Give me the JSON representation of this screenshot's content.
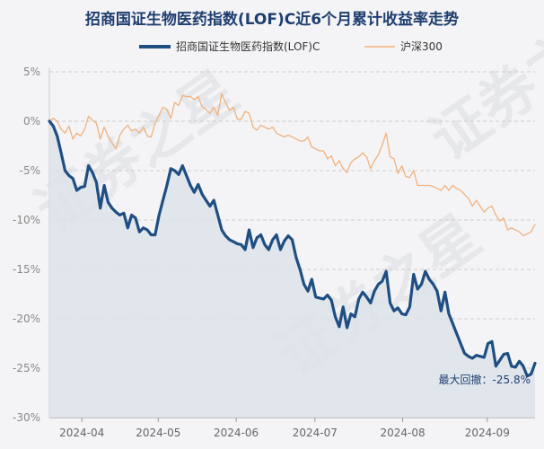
{
  "chart_data": {
    "type": "line",
    "title": "招商国证生物医药指数(LOF)C近6个月累计收益率走势",
    "y_unit": "%",
    "ylim": [
      -30,
      5
    ],
    "yticks": [
      "5%",
      "0%",
      "-5%",
      "-10%",
      "-15%",
      "-20%",
      "-25%",
      "-30%"
    ],
    "ytick_values": [
      5,
      0,
      -5,
      -10,
      -15,
      -20,
      -25,
      -30
    ],
    "xticks": [
      "2024-04",
      "2024-05",
      "2024-06",
      "2024-07",
      "2024-08",
      "2024-09"
    ],
    "xtick_values": [
      8.3,
      27.8,
      47.7,
      67.8,
      90.2,
      111.8
    ],
    "x_range": [
      0,
      124
    ],
    "grid": "horizontal dashed",
    "legend_position": "top",
    "colors": {
      "fund": "#1f4e82",
      "index": "#f0b27e",
      "area": "#dde3ea"
    },
    "series": [
      {
        "name": "招商国证生物医药指数(LOF)C",
        "points": [
          [
            0,
            0
          ],
          [
            1,
            -0.5
          ],
          [
            2,
            -1.5
          ],
          [
            3,
            -3.2
          ],
          [
            4,
            -5
          ],
          [
            5,
            -5.5
          ],
          [
            6,
            -5.8
          ],
          [
            7,
            -7
          ],
          [
            8,
            -6.7
          ],
          [
            9,
            -6.6
          ],
          [
            10,
            -4.5
          ],
          [
            11,
            -5.2
          ],
          [
            12,
            -6.2
          ],
          [
            13,
            -8.8
          ],
          [
            14,
            -6.5
          ],
          [
            15,
            -8.2
          ],
          [
            16,
            -8.8
          ],
          [
            17,
            -9.2
          ],
          [
            18,
            -9.5
          ],
          [
            19,
            -9.3
          ],
          [
            20,
            -10.8
          ],
          [
            21,
            -9.5
          ],
          [
            22,
            -9.8
          ],
          [
            23,
            -11.2
          ],
          [
            24,
            -10.8
          ],
          [
            25,
            -11
          ],
          [
            26,
            -11.5
          ],
          [
            27,
            -11.5
          ],
          [
            28,
            -9.5
          ],
          [
            29,
            -8
          ],
          [
            30,
            -6.5
          ],
          [
            31,
            -4.8
          ],
          [
            32,
            -5
          ],
          [
            33,
            -5.4
          ],
          [
            34,
            -4.5
          ],
          [
            35,
            -5.5
          ],
          [
            36,
            -6.5
          ],
          [
            37,
            -7.2
          ],
          [
            38,
            -6.4
          ],
          [
            39,
            -7.4
          ],
          [
            40,
            -8
          ],
          [
            41,
            -8.6
          ],
          [
            42,
            -8
          ],
          [
            43,
            -9.5
          ],
          [
            44,
            -11
          ],
          [
            45,
            -11.6
          ],
          [
            46,
            -12
          ],
          [
            47,
            -12.2
          ],
          [
            48,
            -12.4
          ],
          [
            49,
            -12.5
          ],
          [
            50,
            -13
          ],
          [
            51,
            -11
          ],
          [
            52,
            -12.8
          ],
          [
            53,
            -11.8
          ],
          [
            54,
            -11.5
          ],
          [
            55,
            -12.5
          ],
          [
            56,
            -13
          ],
          [
            57,
            -12
          ],
          [
            58,
            -11.5
          ],
          [
            59,
            -13
          ],
          [
            60,
            -12.1
          ],
          [
            61,
            -11.6
          ],
          [
            62,
            -12
          ],
          [
            63,
            -13.8
          ],
          [
            64,
            -15
          ],
          [
            65,
            -16.5
          ],
          [
            66,
            -17.2
          ],
          [
            67,
            -16
          ],
          [
            68,
            -17.8
          ],
          [
            69,
            -17.9
          ],
          [
            70,
            -18
          ],
          [
            71,
            -17.6
          ],
          [
            72,
            -18.1
          ],
          [
            73,
            -19.8
          ],
          [
            74,
            -20.8
          ],
          [
            75,
            -18.8
          ],
          [
            76,
            -20.9
          ],
          [
            77,
            -19.5
          ],
          [
            78,
            -19.8
          ],
          [
            79,
            -18
          ],
          [
            80,
            -17.3
          ],
          [
            81,
            -17.8
          ],
          [
            82,
            -18.4
          ],
          [
            83,
            -17.2
          ],
          [
            84,
            -16.5
          ],
          [
            85,
            -16.2
          ],
          [
            86,
            -15.2
          ],
          [
            87,
            -18.4
          ],
          [
            88,
            -19.2
          ],
          [
            89,
            -18.9
          ],
          [
            90,
            -19.5
          ],
          [
            91,
            -19.6
          ],
          [
            92,
            -18.8
          ],
          [
            93,
            -15.5
          ],
          [
            94,
            -17
          ],
          [
            95,
            -16.5
          ],
          [
            96,
            -15.2
          ],
          [
            97,
            -16
          ],
          [
            98,
            -16.5
          ],
          [
            99,
            -17.2
          ],
          [
            100,
            -19.2
          ],
          [
            101,
            -17.3
          ],
          [
            102,
            -19.5
          ],
          [
            103,
            -20.5
          ],
          [
            104,
            -21.5
          ],
          [
            105,
            -22.5
          ],
          [
            106,
            -23.5
          ],
          [
            107,
            -23.8
          ],
          [
            108,
            -24
          ],
          [
            109,
            -23.7
          ],
          [
            110,
            -23.8
          ],
          [
            111,
            -23.9
          ],
          [
            112,
            -22.5
          ],
          [
            113,
            -22.3
          ],
          [
            114,
            -24.8
          ],
          [
            115,
            -24.2
          ],
          [
            116,
            -23.6
          ],
          [
            117,
            -23.5
          ],
          [
            118,
            -24.8
          ],
          [
            119,
            -24.9
          ],
          [
            120,
            -24.3
          ],
          [
            121,
            -24.8
          ],
          [
            122,
            -25.8
          ],
          [
            123,
            -25.6
          ],
          [
            124,
            -24.5
          ]
        ]
      },
      {
        "name": "沪深300",
        "points": [
          [
            0,
            0
          ],
          [
            1,
            0.3
          ],
          [
            2,
            0
          ],
          [
            3,
            -0.8
          ],
          [
            4,
            -1.2
          ],
          [
            5,
            -0.5
          ],
          [
            6,
            -1.8
          ],
          [
            7,
            -1.2
          ],
          [
            8,
            -1.5
          ],
          [
            9,
            -0.8
          ],
          [
            10,
            0.5
          ],
          [
            11,
            0.1
          ],
          [
            12,
            -0.2
          ],
          [
            13,
            -1.8
          ],
          [
            14,
            -0.6
          ],
          [
            15,
            -1.5
          ],
          [
            16,
            -2.2
          ],
          [
            17,
            -2.8
          ],
          [
            18,
            -1.4
          ],
          [
            19,
            -0.8
          ],
          [
            20,
            -0.4
          ],
          [
            21,
            -1
          ],
          [
            22,
            -0.8
          ],
          [
            23,
            -1.2
          ],
          [
            24,
            -0.6
          ],
          [
            25,
            -1.5
          ],
          [
            26,
            -1.6
          ],
          [
            27,
            -0.2
          ],
          [
            28,
            0.6
          ],
          [
            29,
            1.4
          ],
          [
            30,
            1.2
          ],
          [
            31,
            0.3
          ],
          [
            32,
            1.9
          ],
          [
            33,
            1.6
          ],
          [
            34,
            2.6
          ],
          [
            35,
            2.5
          ],
          [
            36,
            2.5
          ],
          [
            37,
            2.2
          ],
          [
            38,
            2.5
          ],
          [
            39,
            1.5
          ],
          [
            40,
            1.2
          ],
          [
            41,
            0.8
          ],
          [
            42,
            1.4
          ],
          [
            43,
            0.6
          ],
          [
            44,
            2.8
          ],
          [
            45,
            1.9
          ],
          [
            46,
            1.1
          ],
          [
            47,
            1.4
          ],
          [
            48,
            0.2
          ],
          [
            49,
            0.2
          ],
          [
            50,
            1
          ],
          [
            51,
            0.8
          ],
          [
            52,
            -0.6
          ],
          [
            53,
            -0.9
          ],
          [
            54,
            -0.4
          ],
          [
            55,
            -0.6
          ],
          [
            56,
            -0.8
          ],
          [
            57,
            -0.6
          ],
          [
            58,
            -1.2
          ],
          [
            59,
            -1.4
          ],
          [
            60,
            -1.6
          ],
          [
            61,
            -1.4
          ],
          [
            62,
            -1.6
          ],
          [
            63,
            -1.8
          ],
          [
            64,
            -2
          ],
          [
            65,
            -2
          ],
          [
            66,
            -1.6
          ],
          [
            67,
            -2.6
          ],
          [
            68,
            -2.8
          ],
          [
            69,
            -3
          ],
          [
            70,
            -3
          ],
          [
            71,
            -3.8
          ],
          [
            72,
            -3.5
          ],
          [
            73,
            -4.5
          ],
          [
            74,
            -4
          ],
          [
            75,
            -4.8
          ],
          [
            76,
            -5.2
          ],
          [
            77,
            -4.2
          ],
          [
            78,
            -3.8
          ],
          [
            79,
            -3.6
          ],
          [
            80,
            -3.2
          ],
          [
            81,
            -3.6
          ],
          [
            82,
            -4.8
          ],
          [
            83,
            -4
          ],
          [
            84,
            -3.4
          ],
          [
            85,
            -2.4
          ],
          [
            86,
            -1.2
          ],
          [
            87,
            -3.6
          ],
          [
            88,
            -3.8
          ],
          [
            89,
            -5.3
          ],
          [
            90,
            -4.5
          ],
          [
            91,
            -5.6
          ],
          [
            92,
            -5.7
          ],
          [
            93,
            -5
          ],
          [
            94,
            -6.5
          ],
          [
            95,
            -6.5
          ],
          [
            96,
            -6.5
          ],
          [
            97,
            -6.5
          ],
          [
            98,
            -6.6
          ],
          [
            99,
            -6.8
          ],
          [
            100,
            -7
          ],
          [
            101,
            -6.5
          ],
          [
            102,
            -7
          ],
          [
            103,
            -6.5
          ],
          [
            104,
            -6.8
          ],
          [
            105,
            -7
          ],
          [
            106,
            -7.4
          ],
          [
            107,
            -7.8
          ],
          [
            108,
            -8.6
          ],
          [
            109,
            -8
          ],
          [
            110,
            -8.6
          ],
          [
            111,
            -9.2
          ],
          [
            112,
            -8.8
          ],
          [
            113,
            -8.6
          ],
          [
            114,
            -9.5
          ],
          [
            115,
            -10.1
          ],
          [
            116,
            -9.8
          ],
          [
            117,
            -11
          ],
          [
            118,
            -10.8
          ],
          [
            119,
            -11
          ],
          [
            120,
            -11.2
          ],
          [
            121,
            -11.6
          ],
          [
            122,
            -11.4
          ],
          [
            123,
            -11.2
          ],
          [
            124,
            -10.4
          ]
        ]
      }
    ],
    "annotation": {
      "text": "最大回撤：-25.8%",
      "value": -25.8
    },
    "watermark": "证券之星"
  }
}
